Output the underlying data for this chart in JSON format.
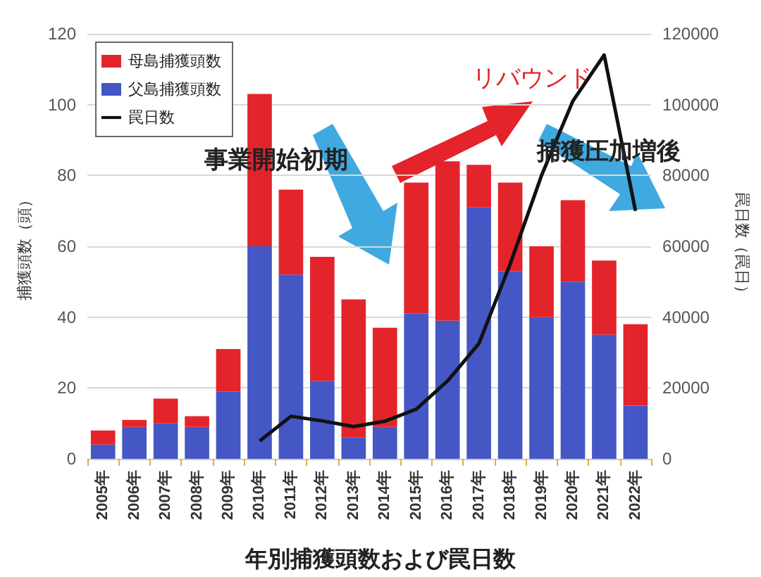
{
  "chart_data": {
    "type": "bar",
    "stacked": true,
    "title": "年別捕獲頭数および罠日数",
    "ylabel": "捕獲頭数（頭）",
    "y2label": "罠日数（罠日）",
    "categories": [
      "2005年",
      "2006年",
      "2007年",
      "2008年",
      "2009年",
      "2010年",
      "2011年",
      "2012年",
      "2013年",
      "2014年",
      "2015年",
      "2016年",
      "2017年",
      "2018年",
      "2019年",
      "2020年",
      "2021年",
      "2022年"
    ],
    "series": [
      {
        "name": "父島捕獲頭数",
        "color": "#4457c4",
        "values": [
          4,
          9,
          10,
          9,
          19,
          60,
          52,
          22,
          6,
          9,
          41,
          39,
          71,
          53,
          40,
          50,
          35,
          15
        ]
      },
      {
        "name": "母島捕獲頭数",
        "color": "#e3242b",
        "values": [
          4,
          2,
          7,
          3,
          12,
          43,
          24,
          35,
          39,
          28,
          37,
          45,
          12,
          25,
          20,
          23,
          21,
          23
        ]
      },
      {
        "name": "罠日数",
        "type": "line",
        "axis": "y2",
        "color": "#111111",
        "values": [
          null,
          null,
          null,
          null,
          null,
          5000,
          12000,
          10700,
          9100,
          10600,
          14000,
          22000,
          32500,
          55000,
          80000,
          101000,
          114000,
          70000
        ]
      }
    ],
    "ylim": [
      0,
      120
    ],
    "yticks": [
      0,
      20,
      40,
      60,
      80,
      100,
      120
    ],
    "y2lim": [
      0,
      120000
    ],
    "y2ticks": [
      0,
      20000,
      40000,
      60000,
      80000,
      100000,
      120000
    ],
    "grid": "y",
    "legend": "top left",
    "marker": "none",
    "line_style": "solid",
    "annotations": [
      "事業開始初期",
      "リバウンド",
      "捕獲圧加増後"
    ]
  }
}
